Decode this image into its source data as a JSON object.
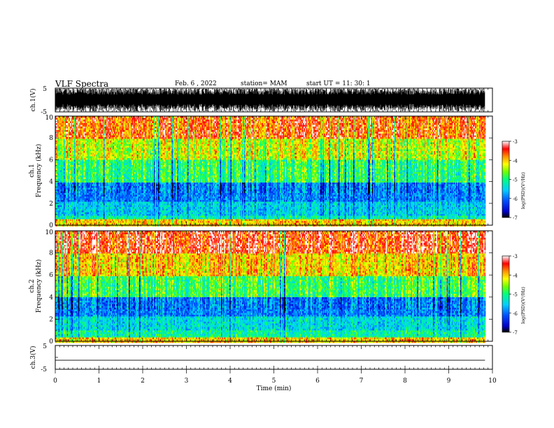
{
  "header": {
    "title": "VLF Spectra",
    "date": "Feb. 6 , 2022",
    "station": "station= MAM",
    "start_ut": "start  UT =   11: 30: 1"
  },
  "chart_data": [
    {
      "type": "line",
      "panel": "ch1-waveform",
      "ylabel": "ch.1(V)",
      "ylim": [
        -5,
        5
      ],
      "yticks": [
        "5",
        "-5"
      ],
      "xlim": [
        0,
        10
      ],
      "x_end": 9.83,
      "series": [
        {
          "values_description": "dense broadband oscillation",
          "amplitude": 5,
          "color": "#000000"
        }
      ]
    },
    {
      "type": "heatmap",
      "panel": "ch1-spectrogram",
      "ylabel_line1": "ch.1",
      "ylabel_line2": "Frequency  (kHz)",
      "ylim": [
        0,
        10
      ],
      "yticks": [
        "0",
        "2",
        "4",
        "6",
        "8",
        "10"
      ],
      "xlim": [
        0,
        10
      ],
      "x_end": 9.83,
      "colorbar": {
        "label": "log(PSD)(V²/Hz)",
        "range": [
          -7,
          -3
        ],
        "ticks": [
          "-3",
          "-4",
          "-5",
          "-6",
          "-7"
        ],
        "colors": [
          "#000000",
          "#0000cc",
          "#0050ff",
          "#00d0ff",
          "#00ff80",
          "#70ff00",
          "#ffff00",
          "#ff9000",
          "#ff0000",
          "#ffffff"
        ]
      },
      "bands": [
        {
          "from_khz": 0.0,
          "to_khz": 0.7,
          "level": -4.0
        },
        {
          "from_khz": 0.7,
          "to_khz": 1.0,
          "level": -5.2
        },
        {
          "from_khz": 1.0,
          "to_khz": 2.2,
          "level": -5.5
        },
        {
          "from_khz": 2.2,
          "to_khz": 4.0,
          "level": -5.9
        },
        {
          "from_khz": 4.0,
          "to_khz": 6.0,
          "level": -4.9
        },
        {
          "from_khz": 6.0,
          "to_khz": 8.0,
          "level": -4.3
        },
        {
          "from_khz": 8.0,
          "to_khz": 10.0,
          "level": -3.6
        }
      ]
    },
    {
      "type": "heatmap",
      "panel": "ch2-spectrogram",
      "ylabel_line1": "ch.2",
      "ylabel_line2": "Frequency  (kHz)",
      "ylim": [
        0,
        10
      ],
      "yticks": [
        "0",
        "2",
        "4",
        "6",
        "8",
        "10"
      ],
      "xlim": [
        0,
        10
      ],
      "x_end": 9.83,
      "colorbar": {
        "label": "log(PSD)(V²/Hz)",
        "range": [
          -7,
          -3
        ],
        "ticks": [
          "-3",
          "-4",
          "-5",
          "-6",
          "-7"
        ],
        "colors": [
          "#000000",
          "#0000cc",
          "#0050ff",
          "#00d0ff",
          "#00ff80",
          "#70ff00",
          "#ffff00",
          "#ff9000",
          "#ff0000",
          "#ffffff"
        ]
      },
      "bands": [
        {
          "from_khz": 0.0,
          "to_khz": 0.4,
          "level": -4.0
        },
        {
          "from_khz": 0.4,
          "to_khz": 1.0,
          "level": -5.1
        },
        {
          "from_khz": 1.0,
          "to_khz": 2.4,
          "level": -5.4
        },
        {
          "from_khz": 2.4,
          "to_khz": 4.0,
          "level": -5.9
        },
        {
          "from_khz": 4.0,
          "to_khz": 6.0,
          "level": -4.8
        },
        {
          "from_khz": 6.0,
          "to_khz": 8.0,
          "level": -4.0
        },
        {
          "from_khz": 8.0,
          "to_khz": 10.0,
          "level": -3.4
        }
      ]
    },
    {
      "type": "line",
      "panel": "ch3-waveform",
      "ylabel": "ch.3(V)",
      "ylim": [
        -5,
        5
      ],
      "yticks": [
        "5",
        "-5"
      ],
      "xlim": [
        0,
        10
      ],
      "x_end": 9.83,
      "series": [
        {
          "constant_value": -1.2,
          "color": "#000000"
        }
      ]
    }
  ],
  "xaxis": {
    "label": "Time  (min)",
    "ticks": [
      "0",
      "1",
      "2",
      "3",
      "4",
      "5",
      "6",
      "7",
      "8",
      "9",
      "10"
    ]
  }
}
